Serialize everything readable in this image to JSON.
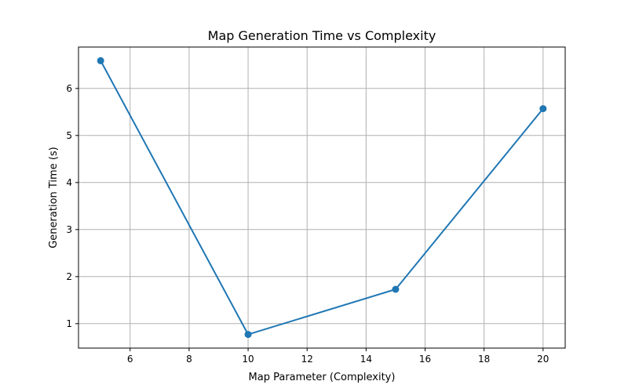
{
  "chart_data": {
    "type": "line",
    "title": "Map Generation Time vs Complexity",
    "xlabel": "Map Parameter (Complexity)",
    "ylabel": "Generation Time (s)",
    "xlim": [
      4.25,
      20.75
    ],
    "ylim": [
      0.48,
      6.88
    ],
    "xticks": [
      6,
      8,
      10,
      12,
      14,
      16,
      18,
      20
    ],
    "yticks": [
      1,
      2,
      3,
      4,
      5,
      6
    ],
    "grid": true,
    "series": [
      {
        "x": [
          5,
          10,
          15,
          20
        ],
        "y": [
          6.59,
          0.77,
          1.73,
          5.57
        ],
        "color": "#1f77b4",
        "marker": "circle"
      }
    ]
  }
}
